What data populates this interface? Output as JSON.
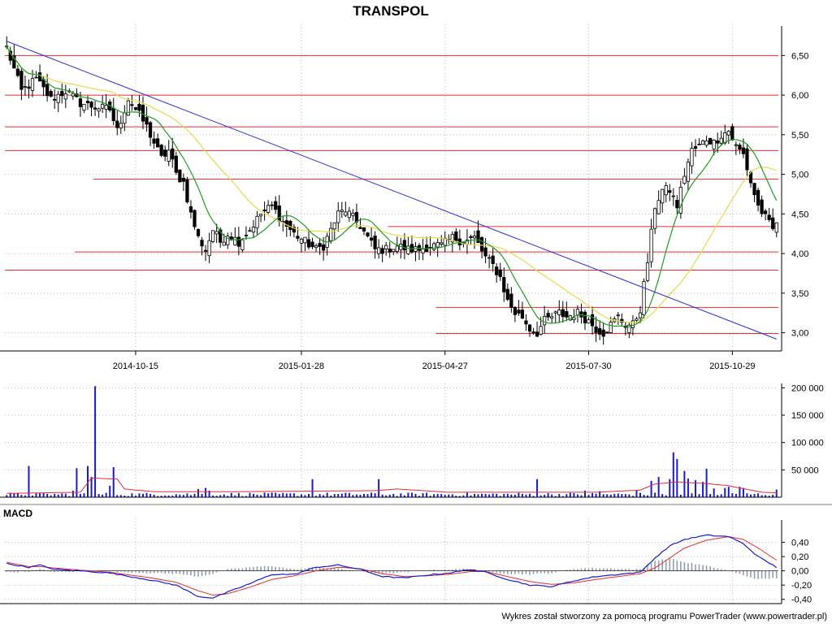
{
  "title": "TRANSPOL",
  "footer": "Wykres został stworzony za pomocą programu PowerTrader (www.powertrader.pl)",
  "colors": {
    "candle": "#000000",
    "ma_short": "#1e9e1e",
    "ma_long": "#e8d84a",
    "trendline": "#2b2bdb",
    "support_resistance": "#e03030",
    "volume_bar": "#1a1ad4",
    "volume_avg": "#e03030",
    "macd_line": "#1a1ad4",
    "signal_line": "#e03030",
    "histogram": "#8f9fb0",
    "grid": "#b8b8b8"
  },
  "chart_data": [
    {
      "type": "candlestick",
      "title": "TRANSPOL",
      "x_ticks": [
        "2014-10-15",
        "2015-01-28",
        "2015-04-27",
        "2015-07-30",
        "2015-10-29"
      ],
      "x_tick_index": [
        35,
        80,
        119,
        158,
        197
      ],
      "y_ticks": [
        "6,50",
        "6,00",
        "5,50",
        "5,00",
        "4,50",
        "4,00",
        "3,50",
        "3,00"
      ],
      "y_tick_values": [
        6.5,
        6.0,
        5.5,
        5.0,
        4.5,
        4.0,
        3.5,
        3.0
      ],
      "ylim": [
        2.77,
        6.77
      ],
      "n_sessions": 210,
      "close_anchors": [
        [
          0,
          6.6
        ],
        [
          4,
          6.05
        ],
        [
          8,
          6.2
        ],
        [
          12,
          5.95
        ],
        [
          16,
          6.05
        ],
        [
          20,
          5.9
        ],
        [
          24,
          5.85
        ],
        [
          28,
          5.82
        ],
        [
          30,
          5.55
        ],
        [
          33,
          5.95
        ],
        [
          36,
          5.75
        ],
        [
          38,
          5.6
        ],
        [
          40,
          5.4
        ],
        [
          42,
          5.2
        ],
        [
          44,
          5.3
        ],
        [
          46,
          5.0
        ],
        [
          48,
          4.9
        ],
        [
          50,
          4.5
        ],
        [
          52,
          4.2
        ],
        [
          54,
          4.05
        ],
        [
          56,
          4.3
        ],
        [
          58,
          4.15
        ],
        [
          60,
          4.25
        ],
        [
          63,
          4.15
        ],
        [
          66,
          4.3
        ],
        [
          69,
          4.5
        ],
        [
          72,
          4.6
        ],
        [
          75,
          4.4
        ],
        [
          78,
          4.25
        ],
        [
          81,
          4.15
        ],
        [
          84,
          4.05
        ],
        [
          86,
          4.1
        ],
        [
          88,
          4.3
        ],
        [
          90,
          4.5
        ],
        [
          92,
          4.55
        ],
        [
          94,
          4.45
        ],
        [
          96,
          4.35
        ],
        [
          98,
          4.2
        ],
        [
          100,
          4.05
        ],
        [
          103,
          4.05
        ],
        [
          106,
          4.1
        ],
        [
          109,
          4.05
        ],
        [
          112,
          4.05
        ],
        [
          115,
          4.1
        ],
        [
          118,
          4.1
        ],
        [
          121,
          4.2
        ],
        [
          124,
          4.15
        ],
        [
          127,
          4.2
        ],
        [
          130,
          3.95
        ],
        [
          132,
          3.85
        ],
        [
          134,
          3.7
        ],
        [
          136,
          3.4
        ],
        [
          138,
          3.25
        ],
        [
          140,
          3.2
        ],
        [
          142,
          3.05
        ],
        [
          144,
          3.0
        ],
        [
          146,
          3.15
        ],
        [
          148,
          3.2
        ],
        [
          150,
          3.25
        ],
        [
          152,
          3.2
        ],
        [
          155,
          3.25
        ],
        [
          158,
          3.15
        ],
        [
          160,
          3.05
        ],
        [
          162,
          3.0
        ],
        [
          164,
          3.1
        ],
        [
          166,
          3.2
        ],
        [
          168,
          3.1
        ],
        [
          170,
          3.1
        ],
        [
          172,
          3.3
        ],
        [
          174,
          3.9
        ],
        [
          176,
          4.6
        ],
        [
          178,
          4.8
        ],
        [
          180,
          4.8
        ],
        [
          182,
          4.6
        ],
        [
          184,
          5.0
        ],
        [
          186,
          5.3
        ],
        [
          188,
          5.35
        ],
        [
          190,
          5.45
        ],
        [
          192,
          5.4
        ],
        [
          194,
          5.5
        ],
        [
          196,
          5.55
        ],
        [
          198,
          5.35
        ],
        [
          200,
          5.25
        ],
        [
          202,
          4.9
        ],
        [
          204,
          4.6
        ],
        [
          206,
          4.45
        ],
        [
          208,
          4.3
        ],
        [
          209,
          4.4
        ]
      ],
      "ma_short_period": 10,
      "ma_long_period": 30,
      "trendline": {
        "from": [
          0,
          6.68
        ],
        "to": [
          209,
          2.92
        ]
      },
      "horizontal_levels": [
        {
          "value": 6.5,
          "from": 0,
          "to": 209
        },
        {
          "value": 6.0,
          "from": 0,
          "to": 209
        },
        {
          "value": 5.6,
          "from": 0,
          "to": 209
        },
        {
          "value": 5.3,
          "from": 0,
          "to": 209
        },
        {
          "value": 4.94,
          "from": 24,
          "to": 209
        },
        {
          "value": 4.34,
          "from": 104,
          "to": 209
        },
        {
          "value": 4.02,
          "from": 19,
          "to": 209
        },
        {
          "value": 3.79,
          "from": 0,
          "to": 209
        },
        {
          "value": 3.32,
          "from": 117,
          "to": 209
        },
        {
          "value": 2.99,
          "from": 117,
          "to": 209
        }
      ]
    },
    {
      "type": "bar",
      "title": "",
      "y_ticks": [
        "200 000",
        "150 000",
        "100 000",
        "50 000"
      ],
      "y_tick_values": [
        200000,
        150000,
        100000,
        50000
      ],
      "ylim": [
        0,
        205000
      ],
      "spikes": [
        [
          6,
          57000
        ],
        [
          18,
          12000
        ],
        [
          19,
          53000
        ],
        [
          22,
          57000
        ],
        [
          23,
          37000
        ],
        [
          24,
          203000
        ],
        [
          28,
          21000
        ],
        [
          29,
          55000
        ],
        [
          52,
          15000
        ],
        [
          54,
          17000
        ],
        [
          55,
          12000
        ],
        [
          83,
          33000
        ],
        [
          101,
          33000
        ],
        [
          144,
          33000
        ],
        [
          157,
          12000
        ],
        [
          161,
          11000
        ],
        [
          171,
          12000
        ],
        [
          175,
          30000
        ],
        [
          177,
          37000
        ],
        [
          180,
          33000
        ],
        [
          181,
          82000
        ],
        [
          182,
          70000
        ],
        [
          184,
          48000
        ],
        [
          185,
          34000
        ],
        [
          187,
          31000
        ],
        [
          189,
          28000
        ],
        [
          190,
          52000
        ],
        [
          192,
          16000
        ],
        [
          195,
          17000
        ],
        [
          196,
          19000
        ],
        [
          199,
          19000
        ],
        [
          200,
          17000
        ],
        [
          209,
          14000
        ]
      ],
      "volume_avg_anchors": [
        [
          0,
          7000
        ],
        [
          20,
          9000
        ],
        [
          23,
          35000
        ],
        [
          30,
          33000
        ],
        [
          32,
          15000
        ],
        [
          40,
          10000
        ],
        [
          60,
          10000
        ],
        [
          100,
          12000
        ],
        [
          106,
          15000
        ],
        [
          120,
          9000
        ],
        [
          140,
          9000
        ],
        [
          160,
          9000
        ],
        [
          172,
          13000
        ],
        [
          176,
          24000
        ],
        [
          182,
          28000
        ],
        [
          190,
          25000
        ],
        [
          196,
          21000
        ],
        [
          205,
          9000
        ],
        [
          209,
          8000
        ]
      ]
    },
    {
      "type": "line",
      "title": "MACD",
      "y_ticks": [
        "0,40",
        "0,20",
        "0,00",
        "-0,20",
        "-0,40"
      ],
      "y_tick_values": [
        0.4,
        0.2,
        0.0,
        -0.2,
        -0.4
      ],
      "ylim": [
        -0.46,
        0.6
      ],
      "series": [
        {
          "name": "",
          "role": "macd",
          "anchors": [
            [
              0,
              0.1
            ],
            [
              6,
              0.05
            ],
            [
              9,
              0.08
            ],
            [
              13,
              0.02
            ],
            [
              20,
              0.0
            ],
            [
              28,
              -0.03
            ],
            [
              38,
              -0.12
            ],
            [
              46,
              -0.2
            ],
            [
              52,
              -0.36
            ],
            [
              56,
              -0.38
            ],
            [
              60,
              -0.3
            ],
            [
              66,
              -0.18
            ],
            [
              72,
              -0.05
            ],
            [
              78,
              -0.05
            ],
            [
              84,
              0.05
            ],
            [
              90,
              0.08
            ],
            [
              96,
              0.02
            ],
            [
              102,
              -0.08
            ],
            [
              108,
              -0.1
            ],
            [
              114,
              -0.06
            ],
            [
              120,
              -0.03
            ],
            [
              126,
              0.02
            ],
            [
              130,
              -0.02
            ],
            [
              136,
              -0.12
            ],
            [
              142,
              -0.2
            ],
            [
              148,
              -0.22
            ],
            [
              154,
              -0.14
            ],
            [
              160,
              -0.08
            ],
            [
              166,
              -0.05
            ],
            [
              172,
              -0.02
            ],
            [
              176,
              0.18
            ],
            [
              180,
              0.35
            ],
            [
              184,
              0.44
            ],
            [
              190,
              0.5
            ],
            [
              196,
              0.48
            ],
            [
              200,
              0.38
            ],
            [
              204,
              0.2
            ],
            [
              209,
              0.05
            ]
          ]
        },
        {
          "name": "",
          "role": "signal",
          "anchors": [
            [
              0,
              0.12
            ],
            [
              6,
              0.06
            ],
            [
              9,
              0.06
            ],
            [
              13,
              0.04
            ],
            [
              20,
              0.01
            ],
            [
              28,
              -0.02
            ],
            [
              38,
              -0.09
            ],
            [
              46,
              -0.16
            ],
            [
              52,
              -0.28
            ],
            [
              56,
              -0.34
            ],
            [
              60,
              -0.32
            ],
            [
              66,
              -0.23
            ],
            [
              72,
              -0.12
            ],
            [
              78,
              -0.07
            ],
            [
              84,
              0.0
            ],
            [
              90,
              0.05
            ],
            [
              96,
              0.03
            ],
            [
              102,
              -0.04
            ],
            [
              108,
              -0.08
            ],
            [
              114,
              -0.07
            ],
            [
              120,
              -0.05
            ],
            [
              126,
              -0.01
            ],
            [
              130,
              -0.01
            ],
            [
              136,
              -0.08
            ],
            [
              142,
              -0.15
            ],
            [
              148,
              -0.19
            ],
            [
              154,
              -0.17
            ],
            [
              160,
              -0.12
            ],
            [
              166,
              -0.08
            ],
            [
              172,
              -0.04
            ],
            [
              176,
              0.04
            ],
            [
              180,
              0.18
            ],
            [
              184,
              0.32
            ],
            [
              190,
              0.43
            ],
            [
              196,
              0.48
            ],
            [
              200,
              0.44
            ],
            [
              204,
              0.32
            ],
            [
              209,
              0.15
            ]
          ]
        }
      ]
    }
  ]
}
